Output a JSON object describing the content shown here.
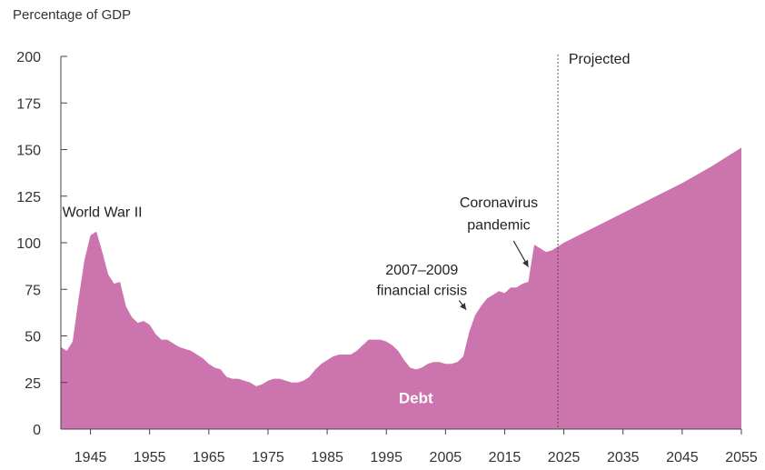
{
  "chart_data": {
    "type": "area",
    "unit_label": "Percentage of GDP",
    "y_ticks": [
      0,
      25,
      50,
      75,
      100,
      125,
      150,
      175,
      200
    ],
    "ylim": [
      0,
      200
    ],
    "x_ticks": [
      1945,
      1955,
      1965,
      1975,
      1985,
      1995,
      2005,
      2015,
      2025,
      2035,
      2045,
      2055
    ],
    "xlim": [
      1940,
      2055
    ],
    "grid": false,
    "series": [
      {
        "name": "Debt",
        "color": "#cc74ad",
        "x": [
          1940,
          1941,
          1942,
          1943,
          1944,
          1945,
          1946,
          1947,
          1948,
          1949,
          1950,
          1951,
          1952,
          1953,
          1954,
          1955,
          1956,
          1957,
          1958,
          1959,
          1960,
          1961,
          1962,
          1963,
          1964,
          1965,
          1966,
          1967,
          1968,
          1969,
          1970,
          1971,
          1972,
          1973,
          1974,
          1975,
          1976,
          1977,
          1978,
          1979,
          1980,
          1981,
          1982,
          1983,
          1984,
          1985,
          1986,
          1987,
          1988,
          1989,
          1990,
          1991,
          1992,
          1993,
          1994,
          1995,
          1996,
          1997,
          1998,
          1999,
          2000,
          2001,
          2002,
          2003,
          2004,
          2005,
          2006,
          2007,
          2008,
          2009,
          2010,
          2011,
          2012,
          2013,
          2014,
          2015,
          2016,
          2017,
          2018,
          2019,
          2020,
          2021,
          2022,
          2023,
          2024,
          2025,
          2030,
          2035,
          2040,
          2045,
          2050,
          2055
        ],
        "values": [
          44,
          42,
          47,
          70,
          91,
          104,
          106,
          95,
          83,
          78,
          79,
          66,
          60,
          57,
          58,
          56,
          51,
          48,
          48,
          46,
          44,
          43,
          42,
          40,
          38,
          35,
          33,
          32,
          28,
          27,
          27,
          26,
          25,
          23,
          24,
          26,
          27,
          27,
          26,
          25,
          25,
          26,
          28,
          32,
          35,
          37,
          39,
          40,
          40,
          40,
          42,
          45,
          48,
          48,
          48,
          47,
          45,
          42,
          37,
          33,
          32,
          33,
          35,
          36,
          36,
          35,
          35,
          36,
          39,
          52,
          61,
          66,
          70,
          72,
          74,
          73,
          76,
          76,
          78,
          79,
          99,
          97,
          95,
          96,
          98,
          100,
          108,
          116,
          124,
          132,
          141,
          151
        ]
      }
    ],
    "projected_from": 2024,
    "annotations": [
      {
        "id": "ww2",
        "text": "World War II",
        "x": 1947,
        "y": 114
      },
      {
        "id": "crisis_1",
        "text": "2007–2009",
        "x": 2001,
        "y": 83
      },
      {
        "id": "crisis_2",
        "text": "financial crisis",
        "x": 2001,
        "y": 72
      },
      {
        "id": "covid_1",
        "text": "Coronavirus",
        "x": 2014,
        "y": 119
      },
      {
        "id": "covid_2",
        "text": "pandemic",
        "x": 2014,
        "y": 107
      },
      {
        "id": "projected",
        "text": "Projected",
        "x": 2031,
        "y": 196
      }
    ],
    "arrows": [
      {
        "id": "crisis_arrow",
        "from": [
          2007.3,
          69
        ],
        "to": [
          2008.5,
          64
        ]
      },
      {
        "id": "covid_arrow",
        "from": [
          2016.5,
          101
        ],
        "to": [
          2019.0,
          87
        ]
      }
    ]
  }
}
